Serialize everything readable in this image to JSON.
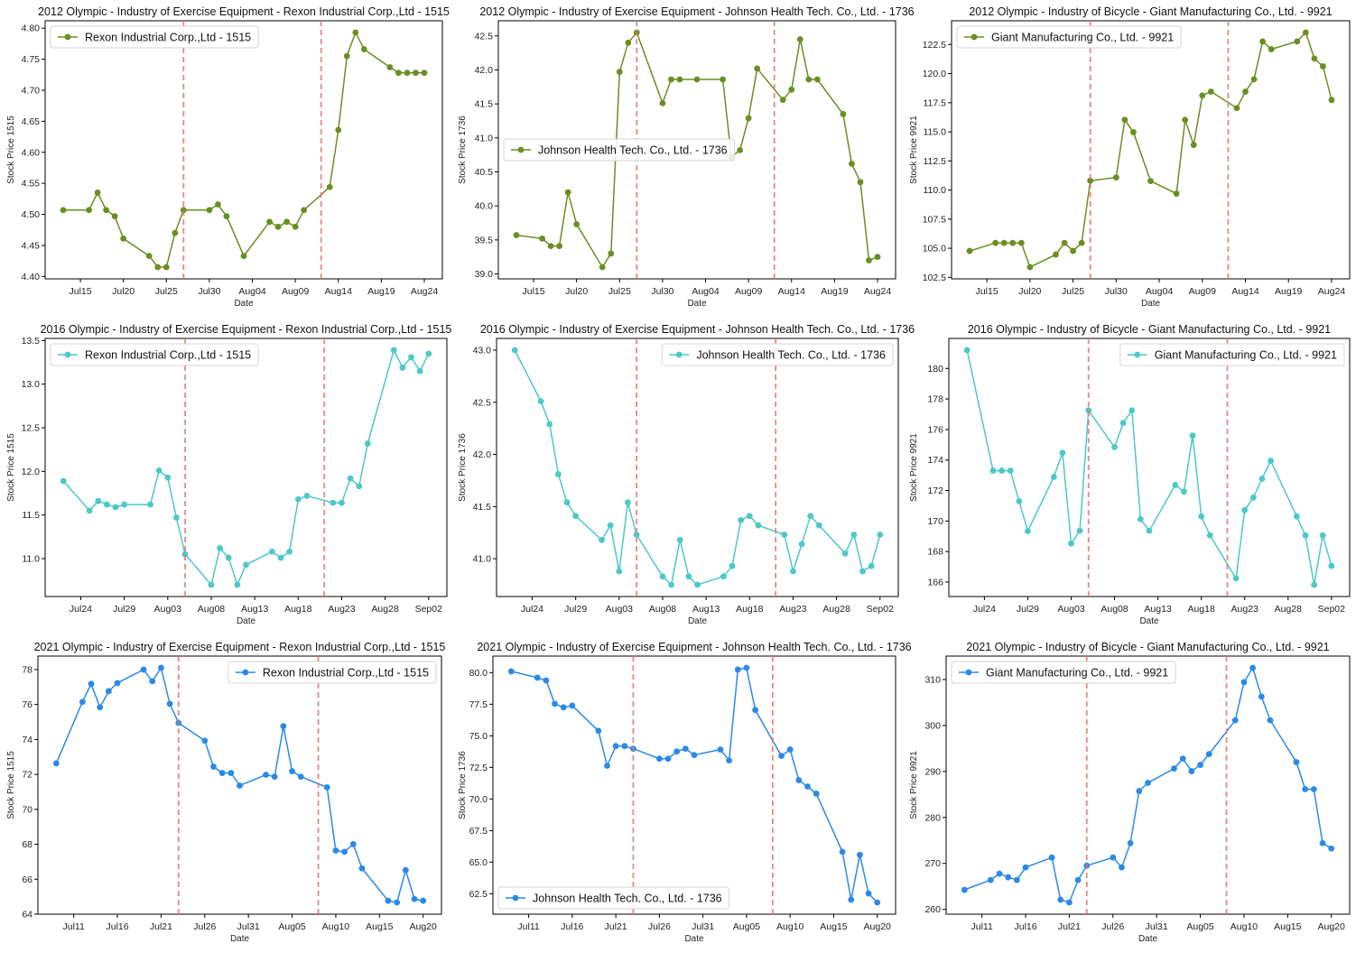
{
  "figure": {
    "event_line_color": "#e57373",
    "event_line_style": "dashed"
  },
  "chart_data": [
    {
      "type": "line",
      "title": "2012 Olympic - Industry of Exercise Equipment - Rexon Industrial Corp.,Ltd - 1515",
      "xlabel": "Date",
      "ylabel": "Stock Price 1515",
      "legend": "upper-left",
      "grid": false,
      "x": [
        "2012-07-13",
        "2012-07-16",
        "2012-07-17",
        "2012-07-18",
        "2012-07-19",
        "2012-07-20",
        "2012-07-23",
        "2012-07-24",
        "2012-07-25",
        "2012-07-26",
        "2012-07-27",
        "2012-07-30",
        "2012-07-31",
        "2012-08-01",
        "2012-08-03",
        "2012-08-06",
        "2012-08-07",
        "2012-08-08",
        "2012-08-09",
        "2012-08-10",
        "2012-08-13",
        "2012-08-14",
        "2012-08-15",
        "2012-08-16",
        "2012-08-17",
        "2012-08-20",
        "2012-08-21",
        "2012-08-22",
        "2012-08-23",
        "2012-08-24"
      ],
      "series": [
        {
          "name": "Rexon Industrial Corp.,Ltd - 1515",
          "color": "#6b8e23",
          "values": [
            4.507,
            4.507,
            4.535,
            4.507,
            4.497,
            4.461,
            4.433,
            4.415,
            4.415,
            4.47,
            4.507,
            4.507,
            4.516,
            4.497,
            4.433,
            4.488,
            4.48,
            4.488,
            4.48,
            4.507,
            4.544,
            4.636,
            4.755,
            4.793,
            4.766,
            4.737,
            4.728,
            4.728,
            4.728,
            4.728
          ]
        }
      ],
      "event_lines": [
        "2012-07-27",
        "2012-08-12"
      ],
      "x_ticks": [
        "Jul15",
        "Jul20",
        "Jul25",
        "Jul30",
        "Aug04",
        "Aug09",
        "Aug14",
        "Aug19",
        "Aug24"
      ],
      "y_ticks": [
        "4.40",
        "4.45",
        "4.50",
        "4.55",
        "4.60",
        "4.65",
        "4.70",
        "4.75",
        "4.80"
      ]
    },
    {
      "type": "line",
      "title": "2012 Olympic - Industry of Exercise Equipment - Johnson Health Tech. Co., Ltd. - 1736",
      "xlabel": "Date",
      "ylabel": "Stock Price 1736",
      "legend": "center-left",
      "grid": false,
      "x": [
        "2012-07-13",
        "2012-07-16",
        "2012-07-17",
        "2012-07-18",
        "2012-07-19",
        "2012-07-20",
        "2012-07-23",
        "2012-07-24",
        "2012-07-25",
        "2012-07-26",
        "2012-07-27",
        "2012-07-30",
        "2012-07-31",
        "2012-08-01",
        "2012-08-03",
        "2012-08-06",
        "2012-08-07",
        "2012-08-08",
        "2012-08-09",
        "2012-08-10",
        "2012-08-13",
        "2012-08-14",
        "2012-08-15",
        "2012-08-16",
        "2012-08-17",
        "2012-08-20",
        "2012-08-21",
        "2012-08-22",
        "2012-08-23",
        "2012-08-24"
      ],
      "series": [
        {
          "name": "Johnson Health Tech. Co., Ltd. - 1736",
          "color": "#6b8e23",
          "values": [
            39.57,
            39.52,
            39.41,
            39.41,
            40.2,
            39.73,
            39.1,
            39.3,
            41.97,
            42.4,
            42.55,
            41.51,
            41.86,
            41.86,
            41.86,
            41.86,
            40.72,
            40.82,
            41.29,
            42.02,
            41.56,
            41.71,
            42.45,
            41.86,
            41.86,
            41.35,
            40.62,
            40.35,
            39.2,
            39.25
          ]
        }
      ],
      "event_lines": [
        "2012-07-27",
        "2012-08-12"
      ],
      "x_ticks": [
        "Jul15",
        "Jul20",
        "Jul25",
        "Jul30",
        "Aug04",
        "Aug09",
        "Aug14",
        "Aug19",
        "Aug24"
      ],
      "y_ticks": [
        "39.0",
        "39.5",
        "40.0",
        "40.5",
        "41.0",
        "41.5",
        "42.0",
        "42.5"
      ]
    },
    {
      "type": "line",
      "title": "2012 Olympic - Industry of Bicycle - Giant Manufacturing Co., Ltd. - 9921",
      "xlabel": "Date",
      "ylabel": "Stock Price 9921",
      "legend": "upper-left",
      "grid": false,
      "x": [
        "2012-07-13",
        "2012-07-16",
        "2012-07-17",
        "2012-07-18",
        "2012-07-19",
        "2012-07-20",
        "2012-07-23",
        "2012-07-24",
        "2012-07-25",
        "2012-07-26",
        "2012-07-27",
        "2012-07-30",
        "2012-07-31",
        "2012-08-01",
        "2012-08-03",
        "2012-08-06",
        "2012-08-07",
        "2012-08-08",
        "2012-08-09",
        "2012-08-10",
        "2012-08-13",
        "2012-08-14",
        "2012-08-15",
        "2012-08-16",
        "2012-08-17",
        "2012-08-20",
        "2012-08-21",
        "2012-08-22",
        "2012-08-23",
        "2012-08-24"
      ],
      "series": [
        {
          "name": "Giant Manufacturing Co., Ltd. - 9921",
          "color": "#6b8e23",
          "values": [
            104.77,
            105.46,
            105.46,
            105.46,
            105.46,
            103.38,
            104.46,
            105.46,
            104.77,
            105.46,
            110.8,
            111.08,
            116.03,
            114.97,
            110.77,
            109.69,
            116.03,
            113.87,
            118.12,
            118.45,
            117.04,
            118.45,
            119.51,
            122.76,
            122.09,
            122.76,
            123.53,
            121.29,
            120.62,
            117.73
          ]
        }
      ],
      "event_lines": [
        "2012-07-27",
        "2012-08-12"
      ],
      "x_ticks": [
        "Jul15",
        "Jul20",
        "Jul25",
        "Jul30",
        "Aug04",
        "Aug09",
        "Aug14",
        "Aug19",
        "Aug24"
      ],
      "y_ticks": [
        "102.5",
        "105.0",
        "107.5",
        "110.0",
        "112.5",
        "115.0",
        "117.5",
        "120.0",
        "122.5"
      ]
    },
    {
      "type": "line",
      "title": "2016 Olympic - Industry of Exercise Equipment - Rexon Industrial Corp.,Ltd - 1515",
      "xlabel": "Date",
      "ylabel": "Stock Price 1515",
      "legend": "upper-left",
      "grid": false,
      "x": [
        "2016-07-22",
        "2016-07-25",
        "2016-07-26",
        "2016-07-27",
        "2016-07-28",
        "2016-07-29",
        "2016-08-01",
        "2016-08-02",
        "2016-08-03",
        "2016-08-04",
        "2016-08-05",
        "2016-08-08",
        "2016-08-09",
        "2016-08-10",
        "2016-08-11",
        "2016-08-12",
        "2016-08-15",
        "2016-08-16",
        "2016-08-17",
        "2016-08-18",
        "2016-08-19",
        "2016-08-22",
        "2016-08-23",
        "2016-08-24",
        "2016-08-25",
        "2016-08-26",
        "2016-08-29",
        "2016-08-30",
        "2016-08-31",
        "2016-09-01",
        "2016-09-02"
      ],
      "series": [
        {
          "name": "Rexon Industrial Corp.,Ltd - 1515",
          "color": "#4cc9c6",
          "values": [
            11.89,
            11.55,
            11.66,
            11.62,
            11.59,
            11.62,
            11.62,
            12.01,
            11.93,
            11.47,
            11.05,
            10.7,
            11.12,
            11.01,
            10.7,
            10.93,
            11.08,
            11.01,
            11.08,
            11.68,
            11.72,
            11.64,
            11.64,
            11.92,
            11.83,
            12.32,
            13.39,
            13.19,
            13.31,
            13.15,
            13.35
          ]
        }
      ],
      "event_lines": [
        "2016-08-05",
        "2016-08-21"
      ],
      "x_ticks": [
        "Jul24",
        "Jul29",
        "Aug03",
        "Aug08",
        "Aug13",
        "Aug18",
        "Aug23",
        "Aug28",
        "Sep02"
      ],
      "y_ticks": [
        "11.0",
        "11.5",
        "12.0",
        "12.5",
        "13.0",
        "13.5"
      ]
    },
    {
      "type": "line",
      "title": "2016 Olympic - Industry of Exercise Equipment - Johnson Health Tech. Co., Ltd. - 1736",
      "xlabel": "Date",
      "ylabel": "Stock Price 1736",
      "legend": "upper-right",
      "grid": false,
      "x": [
        "2016-07-22",
        "2016-07-25",
        "2016-07-26",
        "2016-07-27",
        "2016-07-28",
        "2016-07-29",
        "2016-08-01",
        "2016-08-02",
        "2016-08-03",
        "2016-08-04",
        "2016-08-05",
        "2016-08-08",
        "2016-08-09",
        "2016-08-10",
        "2016-08-11",
        "2016-08-12",
        "2016-08-15",
        "2016-08-16",
        "2016-08-17",
        "2016-08-18",
        "2016-08-19",
        "2016-08-22",
        "2016-08-23",
        "2016-08-24",
        "2016-08-25",
        "2016-08-26",
        "2016-08-29",
        "2016-08-30",
        "2016-08-31",
        "2016-09-01",
        "2016-09-02"
      ],
      "series": [
        {
          "name": "Johnson Health Tech. Co., Ltd. - 1736",
          "color": "#4cc9c6",
          "values": [
            43.0,
            42.51,
            42.29,
            41.81,
            41.54,
            41.41,
            41.18,
            41.32,
            40.88,
            41.54,
            41.23,
            40.83,
            40.75,
            41.18,
            40.83,
            40.75,
            40.83,
            40.93,
            41.37,
            41.41,
            41.32,
            41.23,
            40.88,
            41.14,
            41.41,
            41.32,
            41.05,
            41.23,
            40.88,
            40.93,
            41.23
          ]
        }
      ],
      "event_lines": [
        "2016-08-05",
        "2016-08-21"
      ],
      "x_ticks": [
        "Jul24",
        "Jul29",
        "Aug03",
        "Aug08",
        "Aug13",
        "Aug18",
        "Aug23",
        "Aug28",
        "Sep02"
      ],
      "y_ticks": [
        "41.0",
        "41.5",
        "42.0",
        "42.5",
        "43.0"
      ]
    },
    {
      "type": "line",
      "title": "2016 Olympic - Industry of Bicycle - Giant Manufacturing Co., Ltd. - 9921",
      "xlabel": "Date",
      "ylabel": "Stock Price 9921",
      "legend": "upper-right",
      "grid": false,
      "x": [
        "2016-07-22",
        "2016-07-25",
        "2016-07-26",
        "2016-07-27",
        "2016-07-28",
        "2016-07-29",
        "2016-08-01",
        "2016-08-02",
        "2016-08-03",
        "2016-08-04",
        "2016-08-05",
        "2016-08-08",
        "2016-08-09",
        "2016-08-10",
        "2016-08-11",
        "2016-08-12",
        "2016-08-15",
        "2016-08-16",
        "2016-08-17",
        "2016-08-18",
        "2016-08-19",
        "2016-08-22",
        "2016-08-23",
        "2016-08-24",
        "2016-08-25",
        "2016-08-26",
        "2016-08-29",
        "2016-08-30",
        "2016-08-31",
        "2016-09-01",
        "2016-09-02"
      ],
      "series": [
        {
          "name": "Giant Manufacturing Co., Ltd. - 9921",
          "color": "#4cc9c6",
          "values": [
            181.2,
            173.3,
            173.3,
            173.3,
            171.3,
            169.34,
            172.89,
            174.48,
            168.53,
            169.36,
            177.25,
            174.84,
            176.43,
            177.25,
            170.12,
            169.36,
            172.36,
            171.93,
            175.6,
            170.3,
            169.06,
            166.24,
            170.71,
            171.54,
            172.77,
            173.95,
            170.3,
            169.06,
            165.82,
            169.06,
            167.06
          ]
        }
      ],
      "event_lines": [
        "2016-08-05",
        "2016-08-21"
      ],
      "x_ticks": [
        "Jul24",
        "Jul29",
        "Aug03",
        "Aug08",
        "Aug13",
        "Aug18",
        "Aug23",
        "Aug28",
        "Sep02"
      ],
      "y_ticks": [
        "166",
        "168",
        "170",
        "172",
        "174",
        "176",
        "178",
        "180"
      ]
    },
    {
      "type": "line",
      "title": "2021 Olympic - Industry of Exercise Equipment - Rexon Industrial Corp.,Ltd - 1515",
      "xlabel": "Date",
      "ylabel": "Stock Price 1515",
      "legend": "upper-right",
      "grid": false,
      "x": [
        "2021-07-09",
        "2021-07-12",
        "2021-07-13",
        "2021-07-14",
        "2021-07-15",
        "2021-07-16",
        "2021-07-19",
        "2021-07-20",
        "2021-07-21",
        "2021-07-22",
        "2021-07-23",
        "2021-07-26",
        "2021-07-27",
        "2021-07-28",
        "2021-07-29",
        "2021-07-30",
        "2021-08-02",
        "2021-08-03",
        "2021-08-04",
        "2021-08-05",
        "2021-08-06",
        "2021-08-09",
        "2021-08-10",
        "2021-08-11",
        "2021-08-12",
        "2021-08-13",
        "2021-08-16",
        "2021-08-17",
        "2021-08-18",
        "2021-08-19",
        "2021-08-20"
      ],
      "series": [
        {
          "name": "Rexon Industrial Corp.,Ltd - 1515",
          "color": "#2b8ae6",
          "values": [
            72.63,
            76.15,
            77.18,
            75.84,
            76.76,
            77.23,
            78.0,
            77.33,
            78.1,
            76.04,
            74.95,
            73.93,
            72.44,
            72.08,
            72.08,
            71.36,
            71.98,
            71.87,
            74.76,
            72.18,
            71.87,
            71.26,
            67.64,
            67.57,
            68.01,
            66.62,
            64.77,
            64.67,
            66.52,
            64.87,
            64.77
          ]
        }
      ],
      "event_lines": [
        "2021-07-23",
        "2021-08-08"
      ],
      "x_ticks": [
        "Jul11",
        "Jul16",
        "Jul21",
        "Jul26",
        "Jul31",
        "Aug05",
        "Aug10",
        "Aug15",
        "Aug20"
      ],
      "y_ticks": [
        "64",
        "66",
        "68",
        "70",
        "72",
        "74",
        "76",
        "78"
      ]
    },
    {
      "type": "line",
      "title": "2021 Olympic - Industry of Exercise Equipment - Johnson Health Tech. Co., Ltd. - 1736",
      "xlabel": "Date",
      "ylabel": "Stock Price 1736",
      "legend": "lower-left",
      "grid": false,
      "x": [
        "2021-07-09",
        "2021-07-12",
        "2021-07-13",
        "2021-07-14",
        "2021-07-15",
        "2021-07-16",
        "2021-07-19",
        "2021-07-20",
        "2021-07-21",
        "2021-07-22",
        "2021-07-23",
        "2021-07-26",
        "2021-07-27",
        "2021-07-28",
        "2021-07-29",
        "2021-07-30",
        "2021-08-02",
        "2021-08-03",
        "2021-08-04",
        "2021-08-05",
        "2021-08-06",
        "2021-08-09",
        "2021-08-10",
        "2021-08-11",
        "2021-08-12",
        "2021-08-13",
        "2021-08-16",
        "2021-08-17",
        "2021-08-18",
        "2021-08-19",
        "2021-08-20"
      ],
      "series": [
        {
          "name": "Johnson Health Tech. Co., Ltd. - 1736",
          "color": "#2b8ae6",
          "values": [
            80.1,
            79.6,
            79.38,
            77.53,
            77.25,
            77.39,
            75.4,
            72.63,
            74.19,
            74.19,
            73.98,
            73.19,
            73.19,
            73.76,
            73.98,
            73.48,
            73.91,
            73.05,
            80.24,
            80.38,
            77.04,
            73.41,
            73.91,
            71.49,
            70.99,
            70.42,
            65.82,
            62.03,
            65.58,
            62.52,
            61.81
          ]
        }
      ],
      "event_lines": [
        "2021-07-23",
        "2021-08-08"
      ],
      "x_ticks": [
        "Jul11",
        "Jul16",
        "Jul21",
        "Jul26",
        "Jul31",
        "Aug05",
        "Aug10",
        "Aug15",
        "Aug20"
      ],
      "y_ticks": [
        "62.5",
        "65.0",
        "67.5",
        "70.0",
        "72.5",
        "75.0",
        "77.5",
        "80.0"
      ]
    },
    {
      "type": "line",
      "title": "2021 Olympic - Industry of Bicycle - Giant Manufacturing Co., Ltd. - 9921",
      "xlabel": "Date",
      "ylabel": "Stock Price 9921",
      "legend": "upper-left",
      "grid": false,
      "x": [
        "2021-07-09",
        "2021-07-12",
        "2021-07-13",
        "2021-07-14",
        "2021-07-15",
        "2021-07-16",
        "2021-07-19",
        "2021-07-20",
        "2021-07-21",
        "2021-07-22",
        "2021-07-23",
        "2021-07-26",
        "2021-07-27",
        "2021-07-28",
        "2021-07-29",
        "2021-07-30",
        "2021-08-02",
        "2021-08-03",
        "2021-08-04",
        "2021-08-05",
        "2021-08-06",
        "2021-08-09",
        "2021-08-10",
        "2021-08-11",
        "2021-08-12",
        "2021-08-13",
        "2021-08-16",
        "2021-08-17",
        "2021-08-18",
        "2021-08-19",
        "2021-08-20"
      ],
      "series": [
        {
          "name": "Giant Manufacturing Co., Ltd. - 9921",
          "color": "#2b8ae6",
          "values": [
            264.24,
            266.39,
            267.76,
            266.98,
            266.39,
            269.13,
            271.28,
            262.09,
            261.5,
            266.39,
            269.52,
            271.28,
            269.13,
            274.41,
            285.75,
            287.51,
            290.64,
            292.79,
            290.05,
            291.42,
            293.77,
            301.13,
            309.41,
            312.54,
            306.28,
            301.13,
            292.01,
            286.14,
            286.14,
            274.41,
            273.23
          ]
        }
      ],
      "event_lines": [
        "2021-07-23",
        "2021-08-08"
      ],
      "x_ticks": [
        "Jul11",
        "Jul16",
        "Jul21",
        "Jul26",
        "Jul31",
        "Aug05",
        "Aug10",
        "Aug15",
        "Aug20"
      ],
      "y_ticks": [
        "260",
        "270",
        "280",
        "290",
        "300",
        "310"
      ]
    }
  ]
}
